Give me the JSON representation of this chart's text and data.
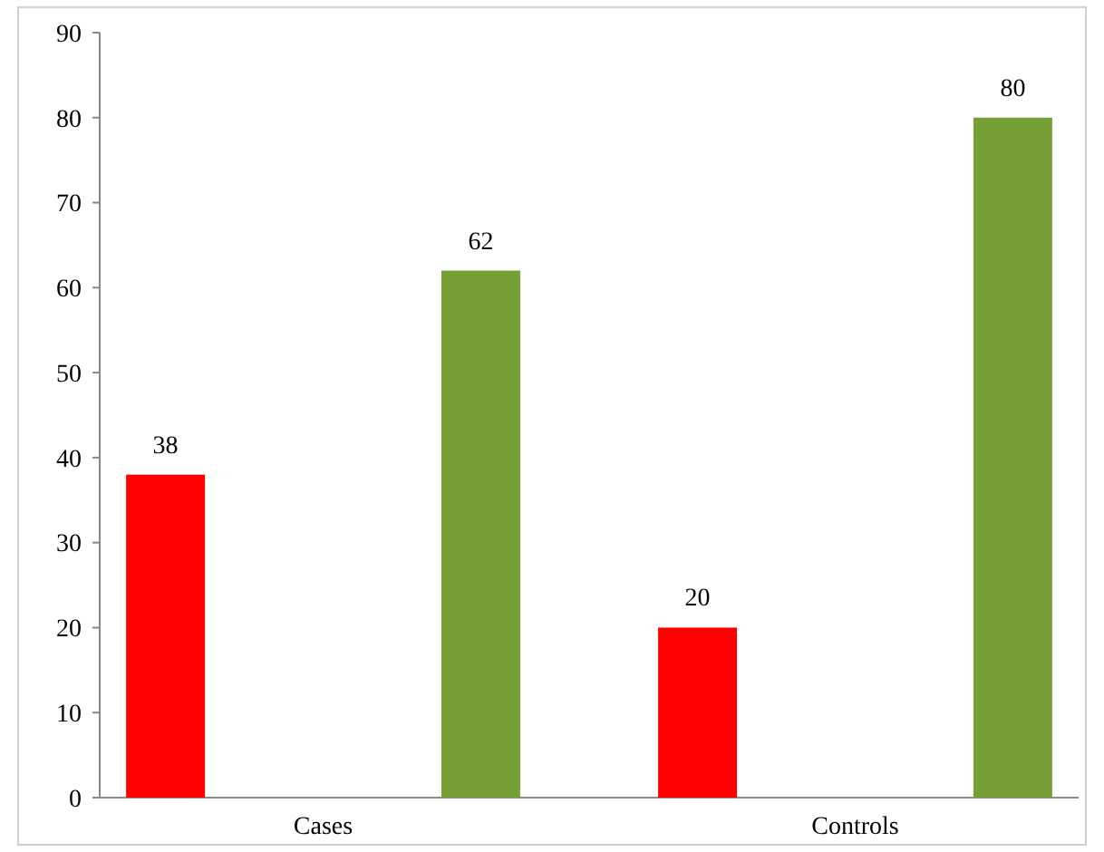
{
  "chart_data": {
    "type": "bar",
    "categories": [
      "Cases",
      "Controls"
    ],
    "series": [
      {
        "color": "#ff0000",
        "values": [
          38,
          20
        ]
      },
      {
        "color": "#76a035",
        "values": [
          62,
          80
        ]
      }
    ],
    "ylim": [
      0,
      90
    ],
    "yticks": [
      0,
      10,
      20,
      30,
      40,
      50,
      60,
      70,
      80,
      90
    ],
    "data_labels": true
  }
}
